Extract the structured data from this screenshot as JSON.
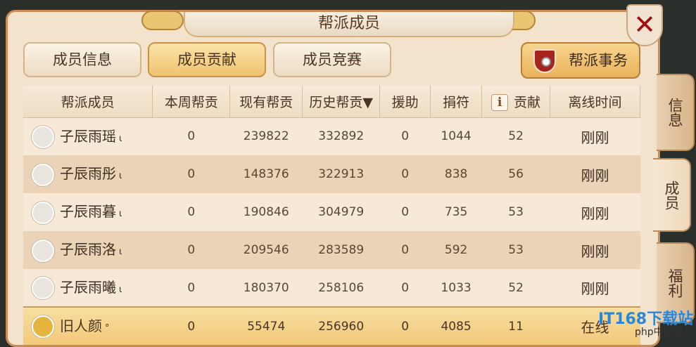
{
  "title": "帮派成员",
  "close_icon": "close-x-icon",
  "tabs": [
    {
      "label": "成员信息",
      "active": false
    },
    {
      "label": "成员贡献",
      "active": true
    },
    {
      "label": "成员竞赛",
      "active": false
    }
  ],
  "affairs_button": {
    "label": "帮派事务",
    "icon": "banner-shield-icon"
  },
  "side_tabs": [
    {
      "label": "信息",
      "active": false
    },
    {
      "label": "成员",
      "active": true
    },
    {
      "label": "福利",
      "active": false
    }
  ],
  "table": {
    "headers": [
      "帮派成员",
      "本周帮贡",
      "现有帮贡",
      "历史帮贡▼",
      "援助",
      "捐符",
      "贡献",
      "离线时间"
    ],
    "rows": [
      {
        "name": "子辰雨瑶",
        "level": "ι",
        "week": "0",
        "current": "239822",
        "history": "332892",
        "aid": "0",
        "donate": "1044",
        "contrib": "52",
        "offline": "刚刚"
      },
      {
        "name": "子辰雨彤",
        "level": "ι",
        "week": "0",
        "current": "148376",
        "history": "322913",
        "aid": "0",
        "donate": "838",
        "contrib": "56",
        "offline": "刚刚"
      },
      {
        "name": "子辰雨暮",
        "level": "ι",
        "week": "0",
        "current": "190846",
        "history": "304979",
        "aid": "0",
        "donate": "735",
        "contrib": "53",
        "offline": "刚刚"
      },
      {
        "name": "子辰雨洛",
        "level": "ι",
        "week": "0",
        "current": "209546",
        "history": "283589",
        "aid": "0",
        "donate": "592",
        "contrib": "53",
        "offline": "刚刚"
      },
      {
        "name": "子辰雨曦",
        "level": "ι",
        "week": "0",
        "current": "180370",
        "history": "258106",
        "aid": "0",
        "donate": "1033",
        "contrib": "52",
        "offline": "刚刚"
      },
      {
        "name": "旧人颜",
        "level": "°",
        "week": "0",
        "current": "55474",
        "history": "256960",
        "aid": "0",
        "donate": "4085",
        "contrib": "11",
        "offline": "在线"
      }
    ]
  },
  "watermark": {
    "text1": "IT168下载站",
    "text2": "php中文网"
  }
}
